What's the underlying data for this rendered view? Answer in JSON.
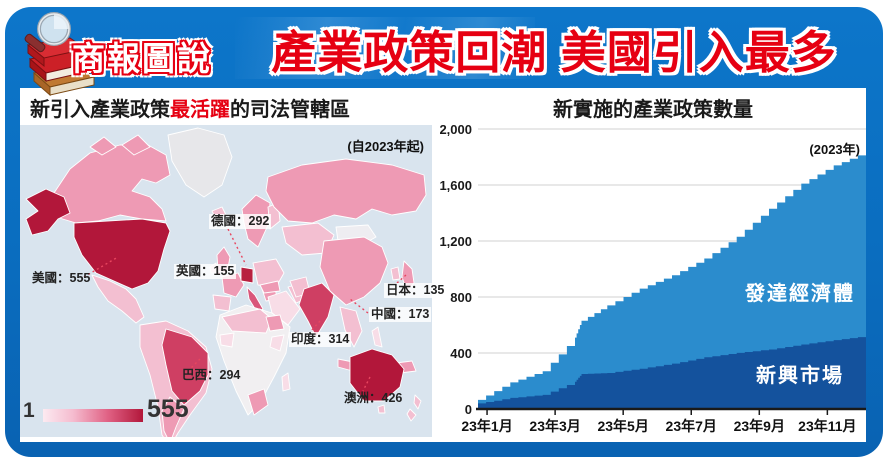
{
  "header": {
    "badge": "商報圖說",
    "title": "產業政策回潮 美國引入最多"
  },
  "map_panel": {
    "title_prefix": "新引入產業政策",
    "title_highlight": "最活躍",
    "title_suffix": "的司法管轄區",
    "note": "(自2023年起)",
    "legend_min": "1",
    "legend_max": "555",
    "labels": [
      {
        "id": "usa",
        "text": "美國：555"
      },
      {
        "id": "uk",
        "text": "英國：155"
      },
      {
        "id": "germany",
        "text": "德國：292"
      },
      {
        "id": "japan",
        "text": "日本：135"
      },
      {
        "id": "china",
        "text": "中國：173"
      },
      {
        "id": "india",
        "text": "印度：314"
      },
      {
        "id": "brazil",
        "text": "巴西：294"
      },
      {
        "id": "australia",
        "text": "澳洲：426"
      }
    ]
  },
  "chart_panel": {
    "title": "新實施的產業政策數量",
    "note": "(2023年)"
  },
  "chart_data": [
    {
      "type": "heatmap",
      "subtype": "choropleth-world-map",
      "title": "新引入產業政策最活躍的司法管轄區",
      "subtitle": "(自2023年起)",
      "categories": [
        "美國",
        "英國",
        "德國",
        "日本",
        "中國",
        "印度",
        "巴西",
        "澳洲"
      ],
      "values": [
        555,
        155,
        292,
        135,
        173,
        314,
        294,
        426
      ],
      "scale_min": 1,
      "scale_max": 555
    },
    {
      "type": "area",
      "stacked": true,
      "title": "新實施的產業政策數量",
      "subtitle": "(2023年)",
      "x_months": [
        0,
        1,
        2,
        3,
        3.2,
        4,
        5,
        6,
        7,
        8,
        9,
        10,
        11,
        12
      ],
      "series": [
        {
          "name": "新興市場",
          "color": "#14529d",
          "values": [
            40,
            79,
            101,
            195,
            250,
            257,
            288,
            324,
            369,
            401,
            425,
            461,
            492,
            521
          ]
        },
        {
          "name": "發達經濟體",
          "color": "#2b8ccd",
          "values": [
            25,
            111,
            169,
            315,
            380,
            483,
            572,
            631,
            706,
            829,
            1005,
            1149,
            1248,
            1314
          ]
        }
      ],
      "xticklabels": [
        "23年1月",
        "23年3月",
        "23年5月",
        "23年7月",
        "23年9月",
        "23年11月"
      ],
      "ylim": [
        0,
        2000
      ],
      "yticks": [
        0,
        400,
        800,
        1200,
        1600,
        2000
      ],
      "legend_position": "inside-area"
    }
  ]
}
